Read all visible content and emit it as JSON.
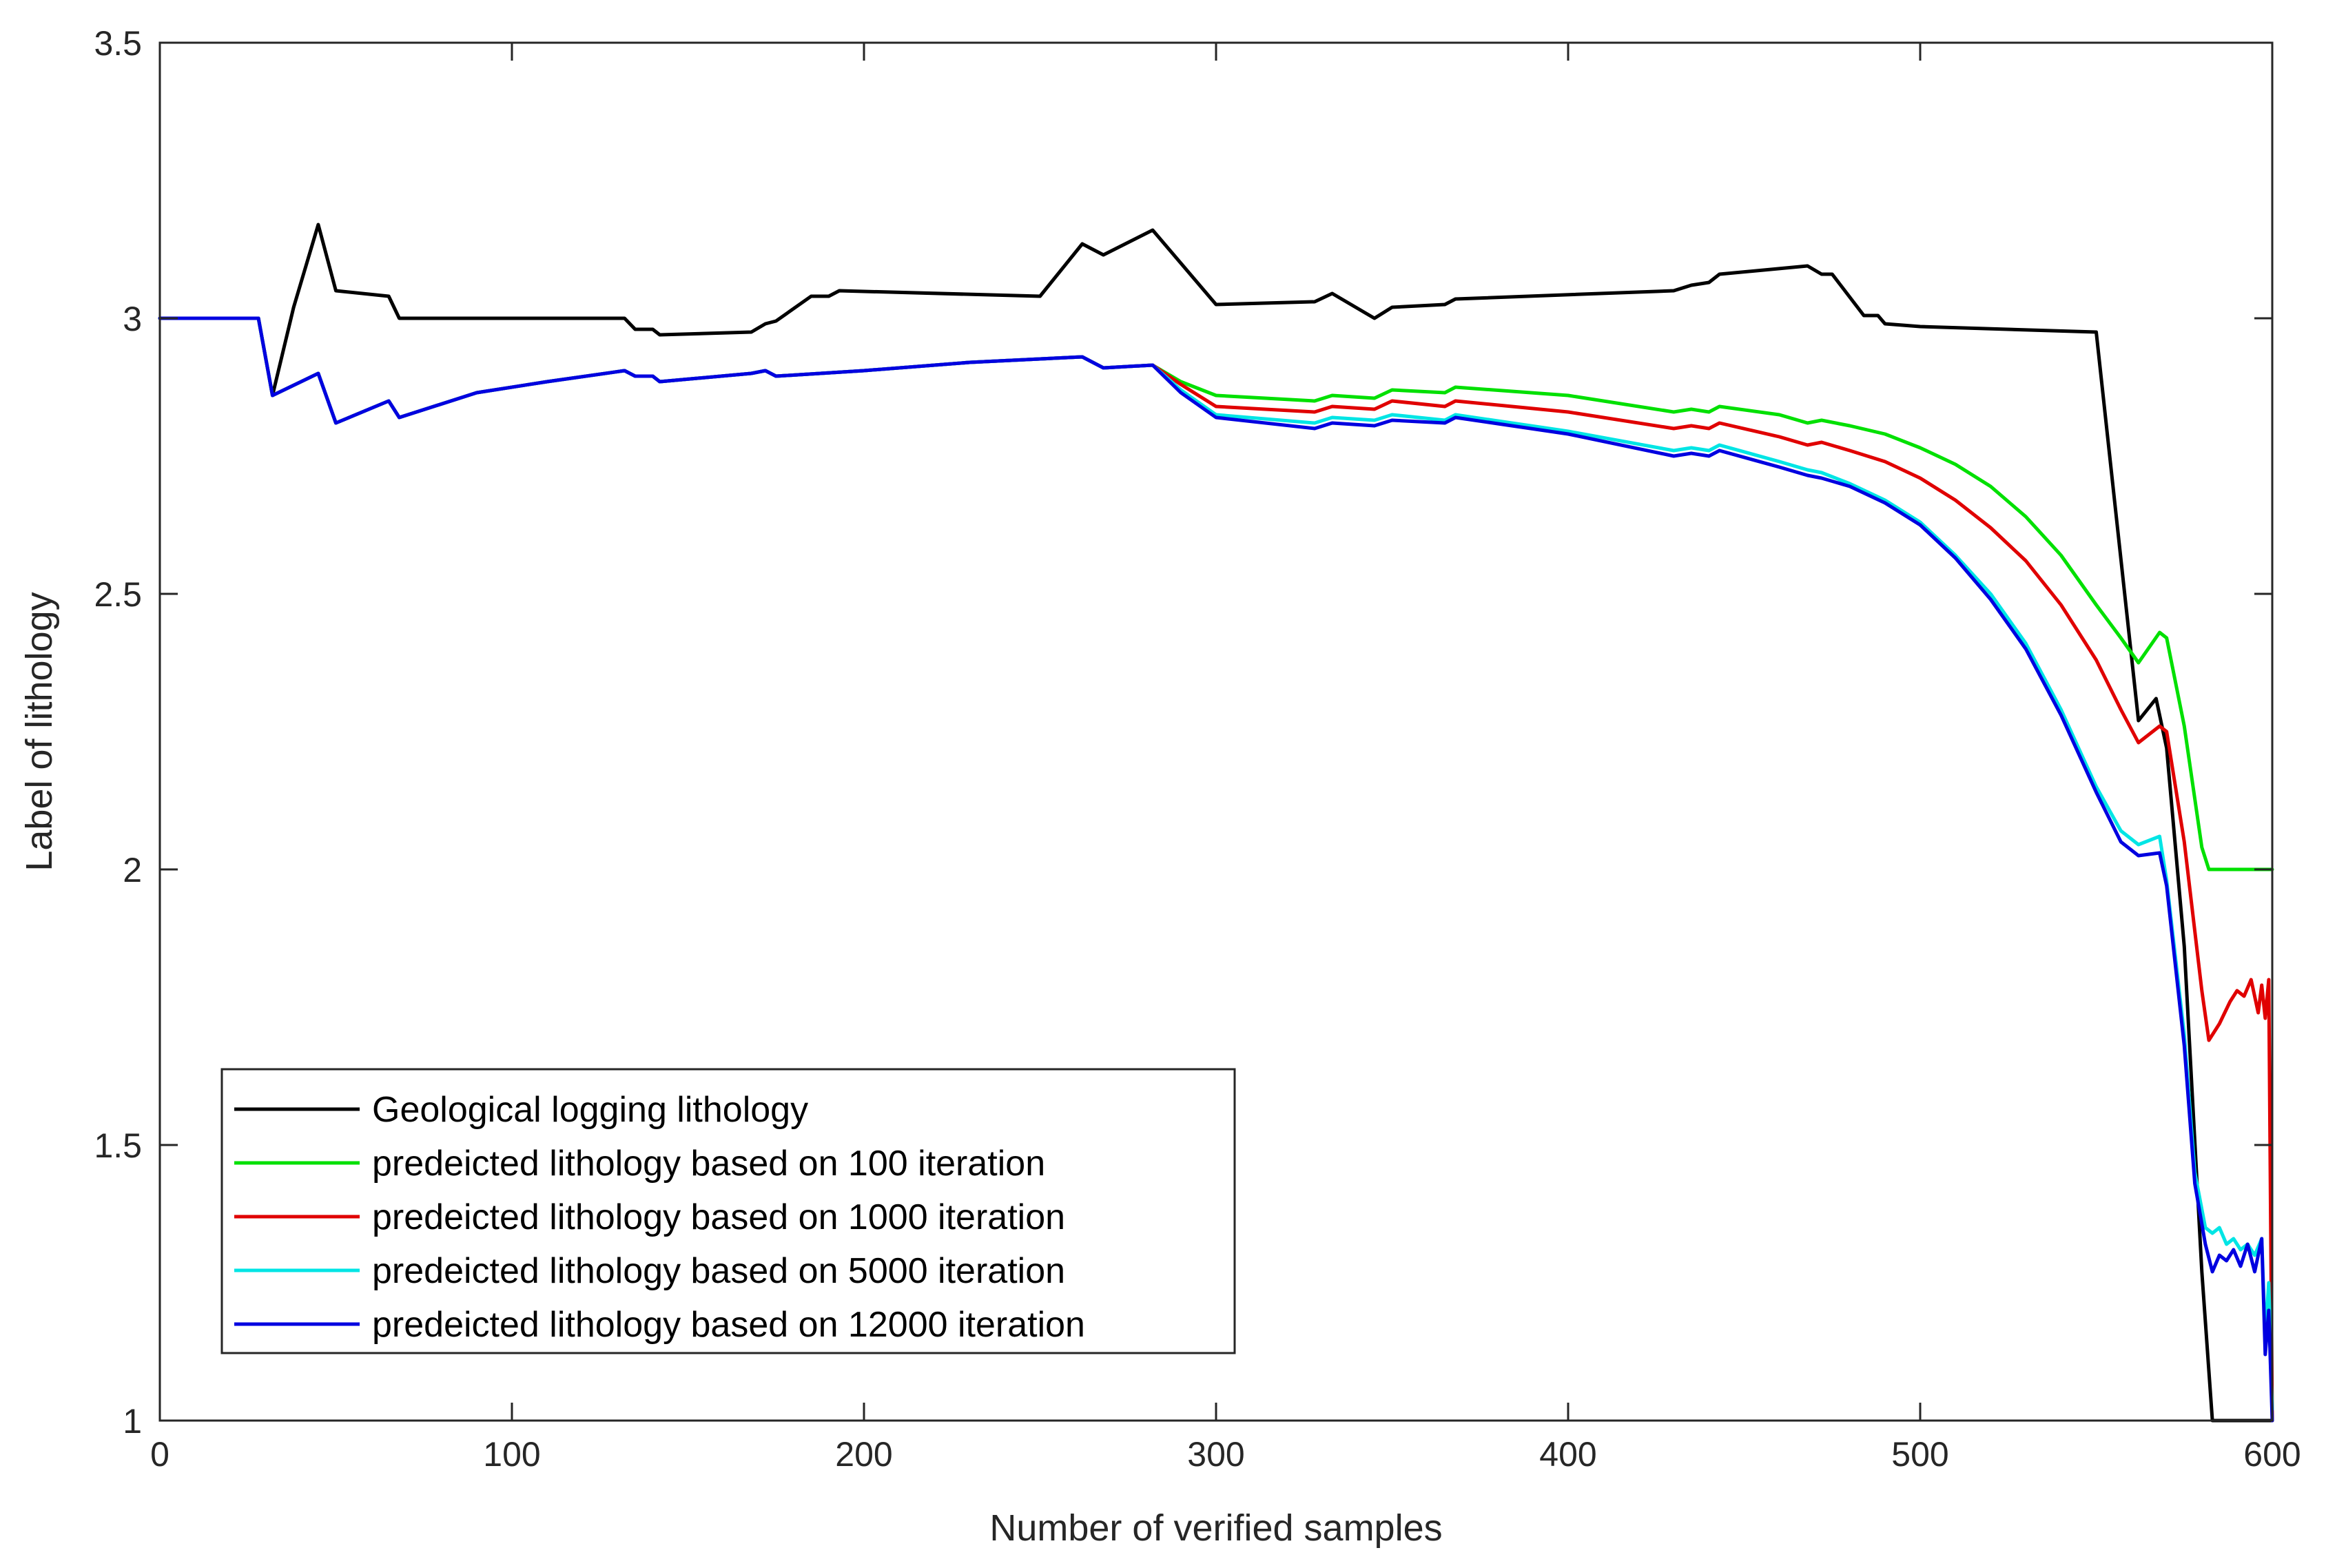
{
  "chart_data": {
    "type": "line",
    "title": "",
    "xlabel": "Number of verified samples",
    "ylabel": "Label of lithology",
    "xlim": [
      0,
      600
    ],
    "ylim": [
      1,
      3.5
    ],
    "xticks": [
      0,
      100,
      200,
      300,
      400,
      500,
      600
    ],
    "yticks": [
      1,
      1.5,
      2,
      2.5,
      3,
      3.5
    ],
    "xtick_labels": [
      "0",
      "100",
      "200",
      "300",
      "400",
      "500",
      "600"
    ],
    "ytick_labels": [
      "1",
      "1.5",
      "2",
      "2.5",
      "3",
      "3.5"
    ],
    "grid": false,
    "legend_position": "bottom-left",
    "series": [
      {
        "name": "Geological logging lithology",
        "color": "#000000",
        "points": [
          [
            0,
            3
          ],
          [
            28,
            3
          ],
          [
            32,
            2.86
          ],
          [
            38,
            3.02
          ],
          [
            45,
            3.17
          ],
          [
            50,
            3.05
          ],
          [
            65,
            3.04
          ],
          [
            68,
            3.0
          ],
          [
            100,
            3.0
          ],
          [
            132,
            3.0
          ],
          [
            135,
            2.98
          ],
          [
            140,
            2.98
          ],
          [
            142,
            2.97
          ],
          [
            168,
            2.975
          ],
          [
            172,
            2.99
          ],
          [
            175,
            2.995
          ],
          [
            185,
            3.04
          ],
          [
            190,
            3.04
          ],
          [
            193,
            3.05
          ],
          [
            250,
            3.04
          ],
          [
            262,
            3.135
          ],
          [
            268,
            3.115
          ],
          [
            282,
            3.16
          ],
          [
            300,
            3.025
          ],
          [
            328,
            3.03
          ],
          [
            333,
            3.045
          ],
          [
            345,
            3.0
          ],
          [
            350,
            3.02
          ],
          [
            365,
            3.025
          ],
          [
            368,
            3.035
          ],
          [
            430,
            3.05
          ],
          [
            435,
            3.06
          ],
          [
            440,
            3.065
          ],
          [
            443,
            3.08
          ],
          [
            468,
            3.095
          ],
          [
            472,
            3.08
          ],
          [
            475,
            3.08
          ],
          [
            484,
            3.005
          ],
          [
            488,
            3.005
          ],
          [
            490,
            2.99
          ],
          [
            500,
            2.985
          ],
          [
            550,
            2.975
          ],
          [
            562,
            2.27
          ],
          [
            567,
            2.31
          ],
          [
            570,
            2.22
          ],
          [
            575,
            1.86
          ],
          [
            580,
            1.27
          ],
          [
            583,
            1.0
          ],
          [
            596,
            1.0
          ],
          [
            598,
            1.0
          ],
          [
            600,
            1.0
          ]
        ]
      },
      {
        "name": "predeicted lithology based on 100 iteration",
        "color": "#00e000",
        "points": [
          [
            0,
            3
          ],
          [
            28,
            3
          ],
          [
            32,
            2.86
          ],
          [
            45,
            2.9
          ],
          [
            50,
            2.81
          ],
          [
            65,
            2.85
          ],
          [
            68,
            2.82
          ],
          [
            90,
            2.865
          ],
          [
            110,
            2.885
          ],
          [
            132,
            2.905
          ],
          [
            135,
            2.895
          ],
          [
            140,
            2.895
          ],
          [
            142,
            2.885
          ],
          [
            168,
            2.9
          ],
          [
            172,
            2.905
          ],
          [
            175,
            2.895
          ],
          [
            200,
            2.905
          ],
          [
            230,
            2.92
          ],
          [
            262,
            2.93
          ],
          [
            268,
            2.91
          ],
          [
            282,
            2.915
          ],
          [
            290,
            2.885
          ],
          [
            300,
            2.86
          ],
          [
            328,
            2.85
          ],
          [
            333,
            2.86
          ],
          [
            345,
            2.855
          ],
          [
            350,
            2.87
          ],
          [
            365,
            2.865
          ],
          [
            368,
            2.875
          ],
          [
            400,
            2.86
          ],
          [
            430,
            2.83
          ],
          [
            435,
            2.835
          ],
          [
            440,
            2.83
          ],
          [
            443,
            2.84
          ],
          [
            460,
            2.825
          ],
          [
            468,
            2.81
          ],
          [
            472,
            2.815
          ],
          [
            480,
            2.805
          ],
          [
            490,
            2.79
          ],
          [
            500,
            2.765
          ],
          [
            510,
            2.735
          ],
          [
            520,
            2.695
          ],
          [
            530,
            2.64
          ],
          [
            540,
            2.57
          ],
          [
            550,
            2.48
          ],
          [
            557,
            2.42
          ],
          [
            562,
            2.375
          ],
          [
            568,
            2.43
          ],
          [
            570,
            2.42
          ],
          [
            575,
            2.26
          ],
          [
            580,
            2.04
          ],
          [
            582,
            2.0
          ],
          [
            590,
            2.0
          ],
          [
            600,
            2.0
          ]
        ]
      },
      {
        "name": "predeicted lithology based on 1000 iteration",
        "color": "#e00000",
        "points": [
          [
            0,
            3
          ],
          [
            28,
            3
          ],
          [
            32,
            2.86
          ],
          [
            45,
            2.9
          ],
          [
            50,
            2.81
          ],
          [
            65,
            2.85
          ],
          [
            68,
            2.82
          ],
          [
            90,
            2.865
          ],
          [
            110,
            2.885
          ],
          [
            132,
            2.905
          ],
          [
            135,
            2.895
          ],
          [
            140,
            2.895
          ],
          [
            142,
            2.885
          ],
          [
            168,
            2.9
          ],
          [
            172,
            2.905
          ],
          [
            175,
            2.895
          ],
          [
            200,
            2.905
          ],
          [
            230,
            2.92
          ],
          [
            262,
            2.93
          ],
          [
            268,
            2.91
          ],
          [
            282,
            2.915
          ],
          [
            290,
            2.88
          ],
          [
            300,
            2.84
          ],
          [
            328,
            2.83
          ],
          [
            333,
            2.84
          ],
          [
            345,
            2.835
          ],
          [
            350,
            2.85
          ],
          [
            365,
            2.84
          ],
          [
            368,
            2.85
          ],
          [
            400,
            2.83
          ],
          [
            430,
            2.8
          ],
          [
            435,
            2.805
          ],
          [
            440,
            2.8
          ],
          [
            443,
            2.81
          ],
          [
            460,
            2.785
          ],
          [
            468,
            2.77
          ],
          [
            472,
            2.775
          ],
          [
            480,
            2.76
          ],
          [
            490,
            2.74
          ],
          [
            500,
            2.71
          ],
          [
            510,
            2.67
          ],
          [
            520,
            2.62
          ],
          [
            530,
            2.56
          ],
          [
            540,
            2.48
          ],
          [
            550,
            2.38
          ],
          [
            557,
            2.29
          ],
          [
            562,
            2.23
          ],
          [
            568,
            2.26
          ],
          [
            570,
            2.25
          ],
          [
            575,
            2.05
          ],
          [
            580,
            1.78
          ],
          [
            582,
            1.69
          ],
          [
            585,
            1.72
          ],
          [
            588,
            1.76
          ],
          [
            590,
            1.78
          ],
          [
            592,
            1.77
          ],
          [
            594,
            1.8
          ],
          [
            596,
            1.74
          ],
          [
            597,
            1.79
          ],
          [
            598,
            1.73
          ],
          [
            599,
            1.8
          ],
          [
            600,
            1.0
          ]
        ]
      },
      {
        "name": "predeicted lithology based on 5000 iteration",
        "color": "#00e5e5",
        "points": [
          [
            0,
            3
          ],
          [
            28,
            3
          ],
          [
            32,
            2.86
          ],
          [
            45,
            2.9
          ],
          [
            50,
            2.81
          ],
          [
            65,
            2.85
          ],
          [
            68,
            2.82
          ],
          [
            90,
            2.865
          ],
          [
            110,
            2.885
          ],
          [
            132,
            2.905
          ],
          [
            135,
            2.895
          ],
          [
            140,
            2.895
          ],
          [
            142,
            2.885
          ],
          [
            168,
            2.9
          ],
          [
            172,
            2.905
          ],
          [
            175,
            2.895
          ],
          [
            200,
            2.905
          ],
          [
            230,
            2.92
          ],
          [
            262,
            2.93
          ],
          [
            268,
            2.91
          ],
          [
            282,
            2.915
          ],
          [
            290,
            2.87
          ],
          [
            300,
            2.825
          ],
          [
            328,
            2.81
          ],
          [
            333,
            2.82
          ],
          [
            345,
            2.815
          ],
          [
            350,
            2.825
          ],
          [
            365,
            2.815
          ],
          [
            368,
            2.825
          ],
          [
            400,
            2.795
          ],
          [
            430,
            2.76
          ],
          [
            435,
            2.765
          ],
          [
            440,
            2.76
          ],
          [
            443,
            2.77
          ],
          [
            460,
            2.74
          ],
          [
            468,
            2.725
          ],
          [
            472,
            2.72
          ],
          [
            480,
            2.7
          ],
          [
            490,
            2.67
          ],
          [
            500,
            2.63
          ],
          [
            510,
            2.57
          ],
          [
            520,
            2.5
          ],
          [
            530,
            2.41
          ],
          [
            540,
            2.29
          ],
          [
            550,
            2.15
          ],
          [
            557,
            2.07
          ],
          [
            562,
            2.045
          ],
          [
            568,
            2.06
          ],
          [
            570,
            1.98
          ],
          [
            575,
            1.7
          ],
          [
            578,
            1.45
          ],
          [
            581,
            1.35
          ],
          [
            583,
            1.34
          ],
          [
            585,
            1.35
          ],
          [
            587,
            1.32
          ],
          [
            589,
            1.33
          ],
          [
            591,
            1.31
          ],
          [
            593,
            1.32
          ],
          [
            595,
            1.3
          ],
          [
            597,
            1.33
          ],
          [
            598,
            1.15
          ],
          [
            599,
            1.25
          ],
          [
            600,
            1.02
          ]
        ]
      },
      {
        "name": "predeicted lithology based on 12000 iteration",
        "color": "#0000e0",
        "points": [
          [
            0,
            3
          ],
          [
            28,
            3
          ],
          [
            32,
            2.86
          ],
          [
            45,
            2.9
          ],
          [
            50,
            2.81
          ],
          [
            65,
            2.85
          ],
          [
            68,
            2.82
          ],
          [
            90,
            2.865
          ],
          [
            110,
            2.885
          ],
          [
            132,
            2.905
          ],
          [
            135,
            2.895
          ],
          [
            140,
            2.895
          ],
          [
            142,
            2.885
          ],
          [
            168,
            2.9
          ],
          [
            172,
            2.905
          ],
          [
            175,
            2.895
          ],
          [
            200,
            2.905
          ],
          [
            230,
            2.92
          ],
          [
            262,
            2.93
          ],
          [
            268,
            2.91
          ],
          [
            282,
            2.915
          ],
          [
            290,
            2.865
          ],
          [
            300,
            2.82
          ],
          [
            328,
            2.8
          ],
          [
            333,
            2.81
          ],
          [
            345,
            2.805
          ],
          [
            350,
            2.815
          ],
          [
            365,
            2.81
          ],
          [
            368,
            2.82
          ],
          [
            400,
            2.79
          ],
          [
            430,
            2.75
          ],
          [
            435,
            2.755
          ],
          [
            440,
            2.75
          ],
          [
            443,
            2.76
          ],
          [
            460,
            2.73
          ],
          [
            468,
            2.715
          ],
          [
            472,
            2.71
          ],
          [
            480,
            2.695
          ],
          [
            490,
            2.665
          ],
          [
            500,
            2.625
          ],
          [
            510,
            2.565
          ],
          [
            520,
            2.49
          ],
          [
            530,
            2.4
          ],
          [
            540,
            2.28
          ],
          [
            550,
            2.14
          ],
          [
            557,
            2.05
          ],
          [
            562,
            2.025
          ],
          [
            568,
            2.03
          ],
          [
            570,
            1.97
          ],
          [
            575,
            1.68
          ],
          [
            578,
            1.43
          ],
          [
            581,
            1.32
          ],
          [
            583,
            1.27
          ],
          [
            585,
            1.3
          ],
          [
            587,
            1.29
          ],
          [
            589,
            1.31
          ],
          [
            591,
            1.28
          ],
          [
            593,
            1.32
          ],
          [
            595,
            1.27
          ],
          [
            597,
            1.33
          ],
          [
            598,
            1.12
          ],
          [
            599,
            1.2
          ],
          [
            600,
            1.0
          ]
        ]
      }
    ]
  }
}
